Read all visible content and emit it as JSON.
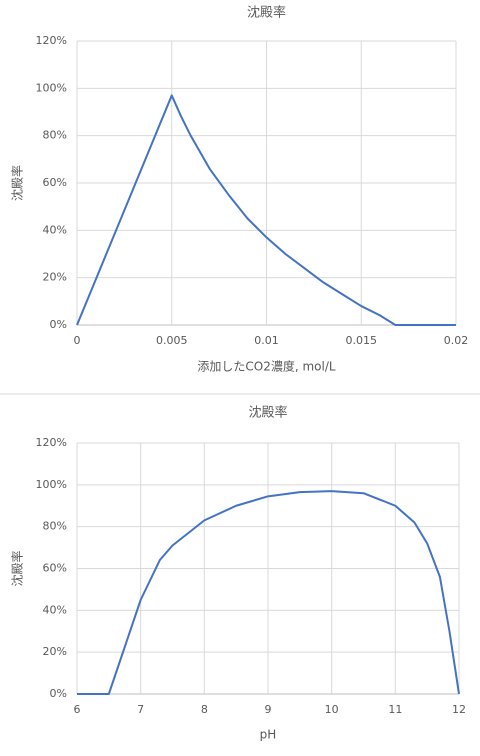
{
  "chart_data": [
    {
      "type": "line",
      "title": "沈殿率",
      "x_label": "添加したCO2濃度, mol/L",
      "y_label": "沈殿率",
      "color": "#4472c4",
      "grid": true,
      "x": [
        0,
        0.005,
        0.0055,
        0.006,
        0.007,
        0.008,
        0.009,
        0.01,
        0.011,
        0.012,
        0.013,
        0.014,
        0.015,
        0.016,
        0.0168,
        0.02
      ],
      "values": [
        0,
        97,
        88,
        80,
        66,
        55,
        45,
        37,
        30,
        24,
        18,
        13,
        8,
        4,
        0,
        0
      ],
      "xlim": [
        0,
        0.02
      ],
      "xticks": [
        0,
        0.005,
        0.01,
        0.015,
        0.02
      ],
      "ylim": [
        0,
        120
      ],
      "yticks": [
        {
          "value": 0,
          "label": "0%"
        },
        {
          "value": 20,
          "label": "20%"
        },
        {
          "value": 40,
          "label": "40%"
        },
        {
          "value": 60,
          "label": "60%"
        },
        {
          "value": 80,
          "label": "80%"
        },
        {
          "value": 100,
          "label": "100%"
        },
        {
          "value": 120,
          "label": "120%"
        }
      ]
    },
    {
      "type": "line",
      "title": "沈殿率",
      "x_label": "pH",
      "y_label": "沈殿率",
      "color": "#4472c4",
      "grid": true,
      "x": [
        6,
        6.5,
        7,
        7.3,
        7.5,
        8,
        8.5,
        9,
        9.5,
        10,
        10.5,
        11,
        11.3,
        11.5,
        11.7,
        11.85,
        12
      ],
      "values": [
        0,
        0,
        45,
        64,
        71,
        83,
        90,
        94.5,
        96.5,
        97,
        96,
        90,
        82,
        72,
        56,
        30,
        0
      ],
      "xlim": [
        6,
        12
      ],
      "xticks": [
        6,
        7,
        8,
        9,
        10,
        11,
        12
      ],
      "ylim": [
        0,
        120
      ],
      "yticks": [
        {
          "value": 0,
          "label": "0%"
        },
        {
          "value": 20,
          "label": "20%"
        },
        {
          "value": 40,
          "label": "40%"
        },
        {
          "value": 60,
          "label": "60%"
        },
        {
          "value": 80,
          "label": "80%"
        },
        {
          "value": 100,
          "label": "100%"
        },
        {
          "value": 120,
          "label": "120%"
        }
      ]
    }
  ]
}
